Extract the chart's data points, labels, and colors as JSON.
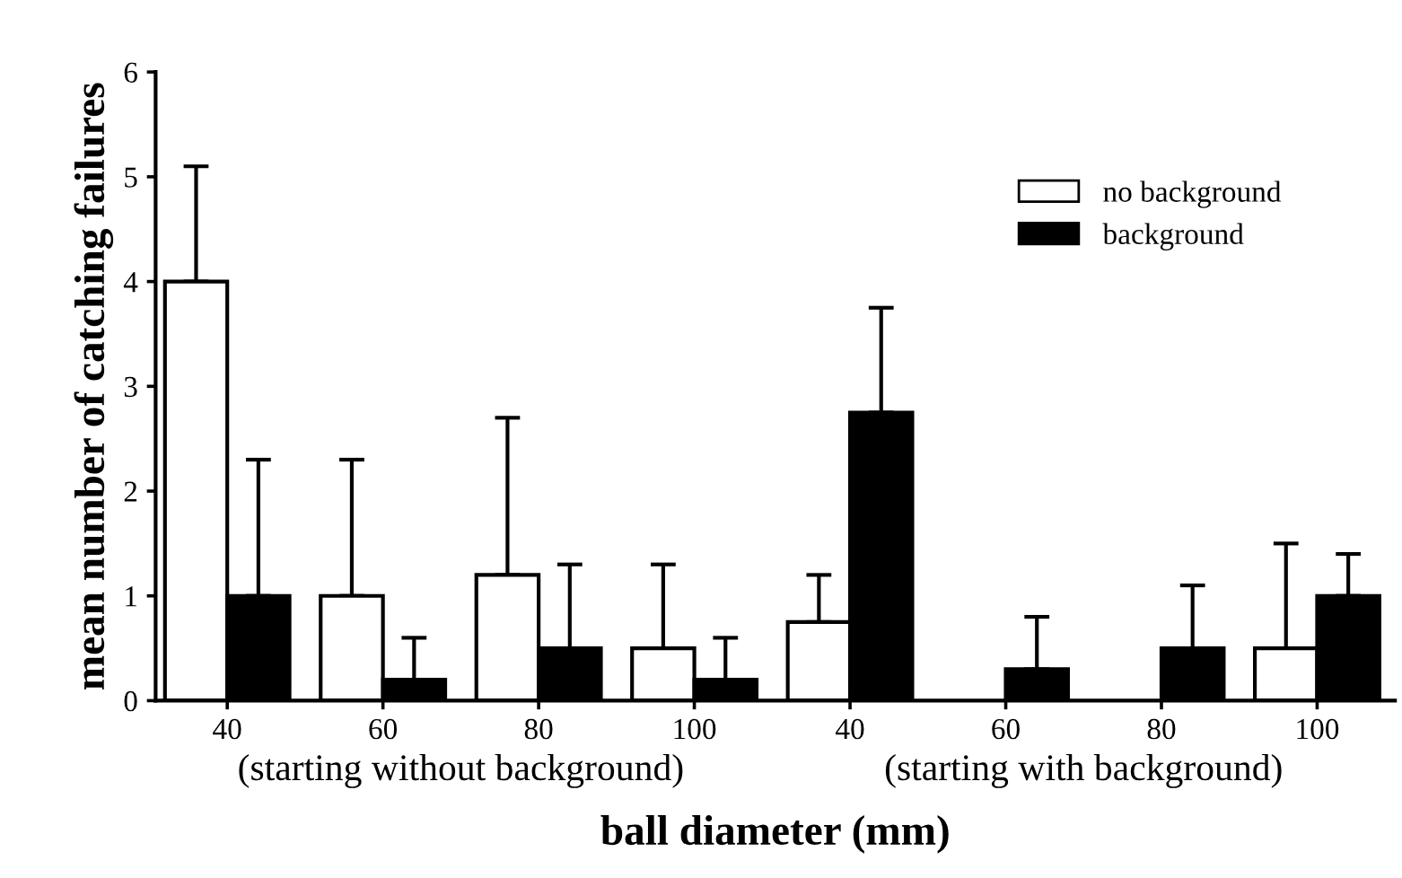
{
  "chart_data": {
    "type": "bar",
    "categories": [
      "40",
      "60",
      "80",
      "100",
      "40",
      "60",
      "80",
      "100"
    ],
    "series": [
      {
        "name": "no background",
        "color": "#ffffff",
        "values": [
          4.0,
          1.0,
          1.2,
          0.5,
          0.75,
          null,
          null,
          0.5
        ],
        "errors": [
          [
            4.0,
            5.1
          ],
          [
            1.0,
            2.3
          ],
          [
            1.2,
            2.7
          ],
          [
            0.5,
            1.3
          ],
          [
            0.75,
            1.2
          ],
          null,
          null,
          [
            0.5,
            1.5
          ]
        ]
      },
      {
        "name": "background",
        "color": "#000000",
        "values": [
          1.0,
          0.2,
          0.5,
          0.2,
          2.75,
          0.3,
          0.5,
          1.0
        ],
        "errors": [
          [
            1.0,
            2.3
          ],
          [
            0.2,
            0.6
          ],
          [
            0.5,
            1.3
          ],
          [
            0.2,
            0.6
          ],
          [
            2.75,
            3.75
          ],
          [
            0.3,
            0.8
          ],
          [
            0.5,
            1.1
          ],
          [
            1.0,
            1.4
          ]
        ]
      }
    ],
    "ylabel": "mean number of catching failures",
    "xlabel": "ball diameter (mm)",
    "annotations": [
      "(starting without background)",
      "(starting with background)"
    ],
    "ylim": [
      0,
      6
    ],
    "yticks": [
      0,
      1,
      2,
      3,
      4,
      5,
      6
    ],
    "grid": false,
    "legend": "top right"
  }
}
